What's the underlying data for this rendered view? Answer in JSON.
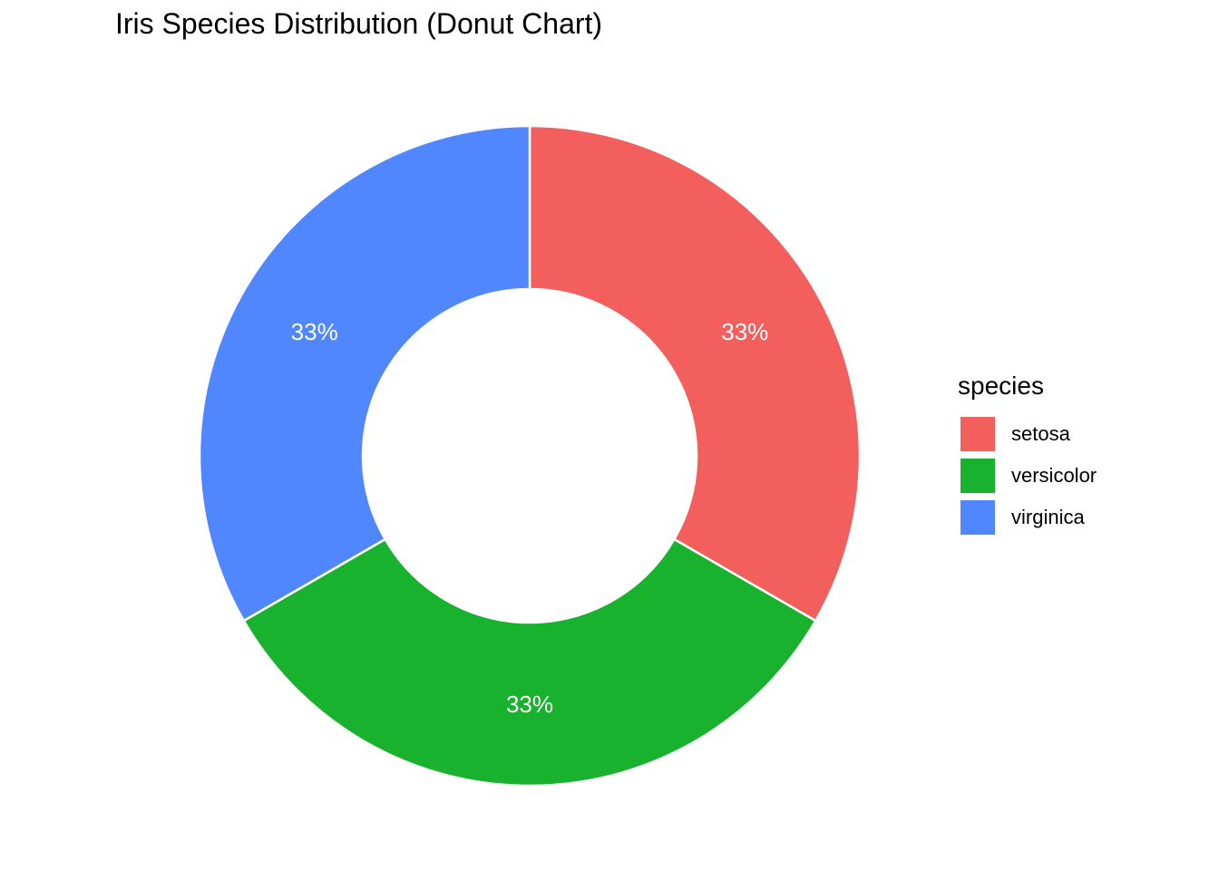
{
  "chart_data": {
    "type": "pie",
    "title": "Iris Species Distribution (Donut Chart)",
    "legend_title": "species",
    "legend_position": "right",
    "donut": true,
    "slices": [
      {
        "name": "setosa",
        "value": 33.33,
        "label": "33%",
        "color": "#F25F5C"
      },
      {
        "name": "versicolor",
        "value": 33.33,
        "label": "33%",
        "color": "#19B22F"
      },
      {
        "name": "virginica",
        "value": 33.33,
        "label": "33%",
        "color": "#5087FF"
      }
    ]
  }
}
